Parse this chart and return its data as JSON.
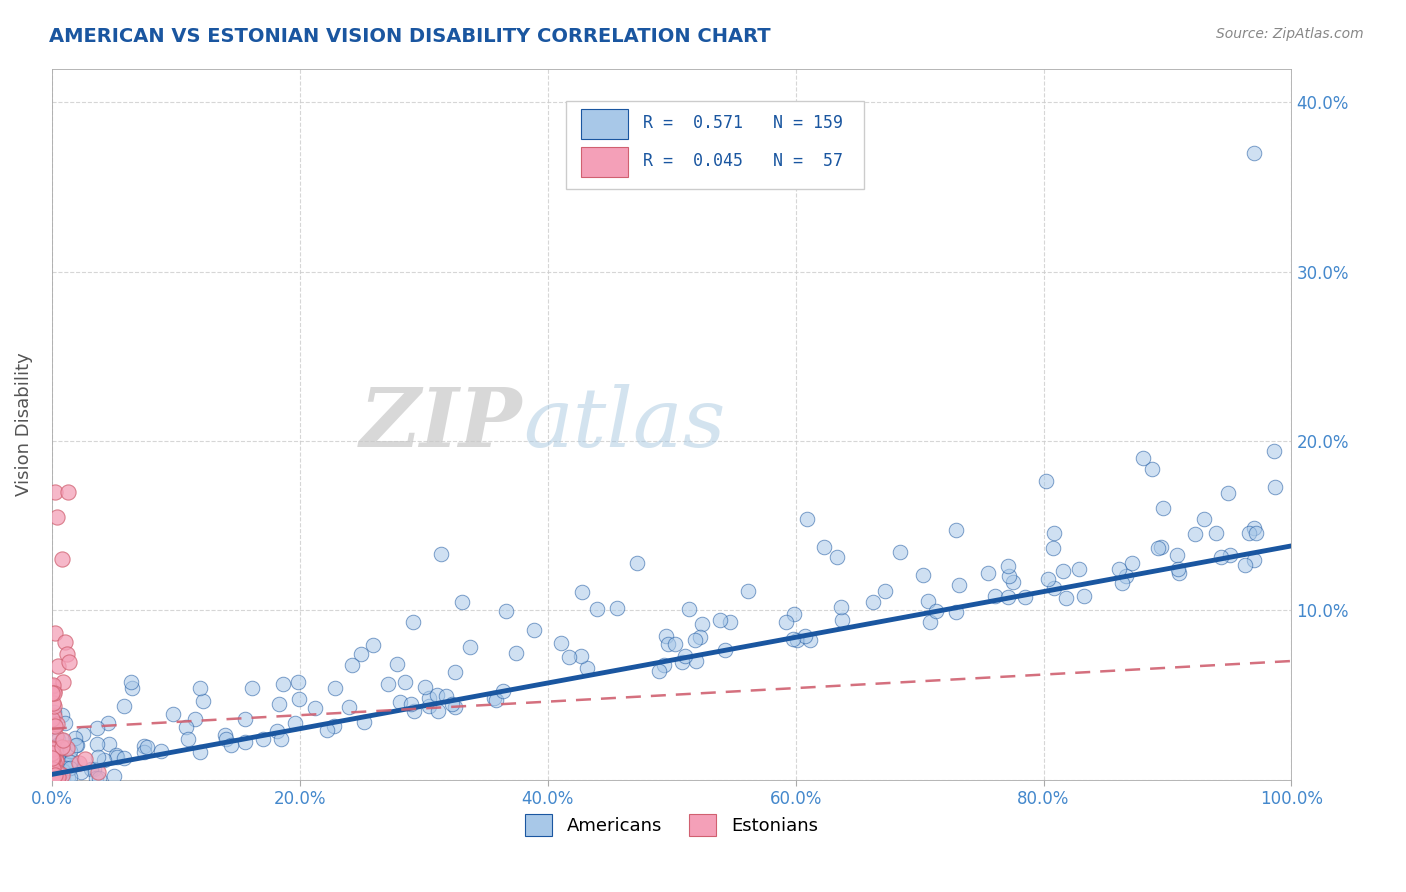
{
  "title": "AMERICAN VS ESTONIAN VISION DISABILITY CORRELATION CHART",
  "source": "Source: ZipAtlas.com",
  "ylabel": "Vision Disability",
  "xlim": [
    0,
    1.0
  ],
  "ylim": [
    0,
    0.42
  ],
  "xticks": [
    0.0,
    0.2,
    0.4,
    0.6,
    0.8,
    1.0
  ],
  "xticklabels": [
    "0.0%",
    "20.0%",
    "40.0%",
    "60.0%",
    "80.0%",
    "100.0%"
  ],
  "yticks": [
    0.0,
    0.1,
    0.2,
    0.3,
    0.4
  ],
  "yticklabels_right": [
    "",
    "10.0%",
    "20.0%",
    "30.0%",
    "40.0%"
  ],
  "legend_r_american": "0.571",
  "legend_n_american": "159",
  "legend_r_estonian": "0.045",
  "legend_n_estonian": "57",
  "american_color": "#a8c8e8",
  "estonian_color": "#f4a0b8",
  "trendline_american_color": "#1a56a0",
  "trendline_estonian_color": "#d06070",
  "watermark_zip": "ZIP",
  "watermark_atlas": "atlas",
  "background_color": "#ffffff",
  "title_color": "#1a56a0",
  "axis_color": "#aaaaaa",
  "grid_color": "#cccccc",
  "tick_color": "#4488cc"
}
